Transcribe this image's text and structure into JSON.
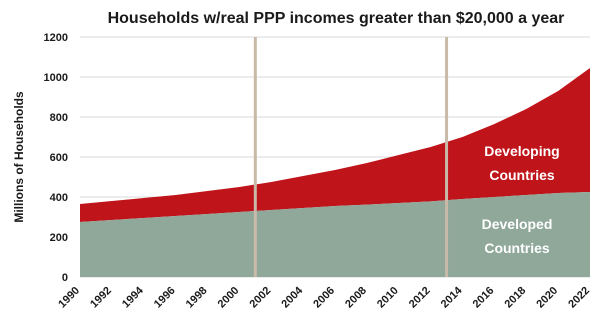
{
  "chart_data": {
    "type": "area",
    "title": "Households w/real PPP incomes greater than $20,000 a year",
    "xlabel": "",
    "ylabel": "Millions of Households",
    "ylim": [
      0,
      1200
    ],
    "yticks": [
      0,
      200,
      400,
      600,
      800,
      1000,
      1200
    ],
    "xlim": [
      1990,
      2022
    ],
    "xticks": [
      1990,
      1992,
      1994,
      1996,
      1998,
      2000,
      2002,
      2004,
      2006,
      2008,
      2010,
      2012,
      2014,
      2016,
      2018,
      2020,
      2022
    ],
    "stacked": true,
    "grid": true,
    "vertical_markers": [
      2001,
      2013
    ],
    "x": [
      1990,
      1992,
      1994,
      1996,
      1998,
      2000,
      2002,
      2004,
      2006,
      2008,
      2010,
      2012,
      2014,
      2016,
      2018,
      2020,
      2022
    ],
    "series": [
      {
        "name": "Developed Countries",
        "color": "#8fa89a",
        "values": [
          275,
          285,
          295,
          305,
          315,
          325,
          335,
          345,
          355,
          362,
          370,
          378,
          390,
          400,
          410,
          420,
          425
        ]
      },
      {
        "name": "Developing Countries",
        "color": "#c0141b",
        "totals": [
          365,
          380,
          395,
          410,
          430,
          450,
          475,
          505,
          535,
          570,
          610,
          650,
          700,
          765,
          840,
          930,
          1045
        ]
      }
    ]
  }
}
